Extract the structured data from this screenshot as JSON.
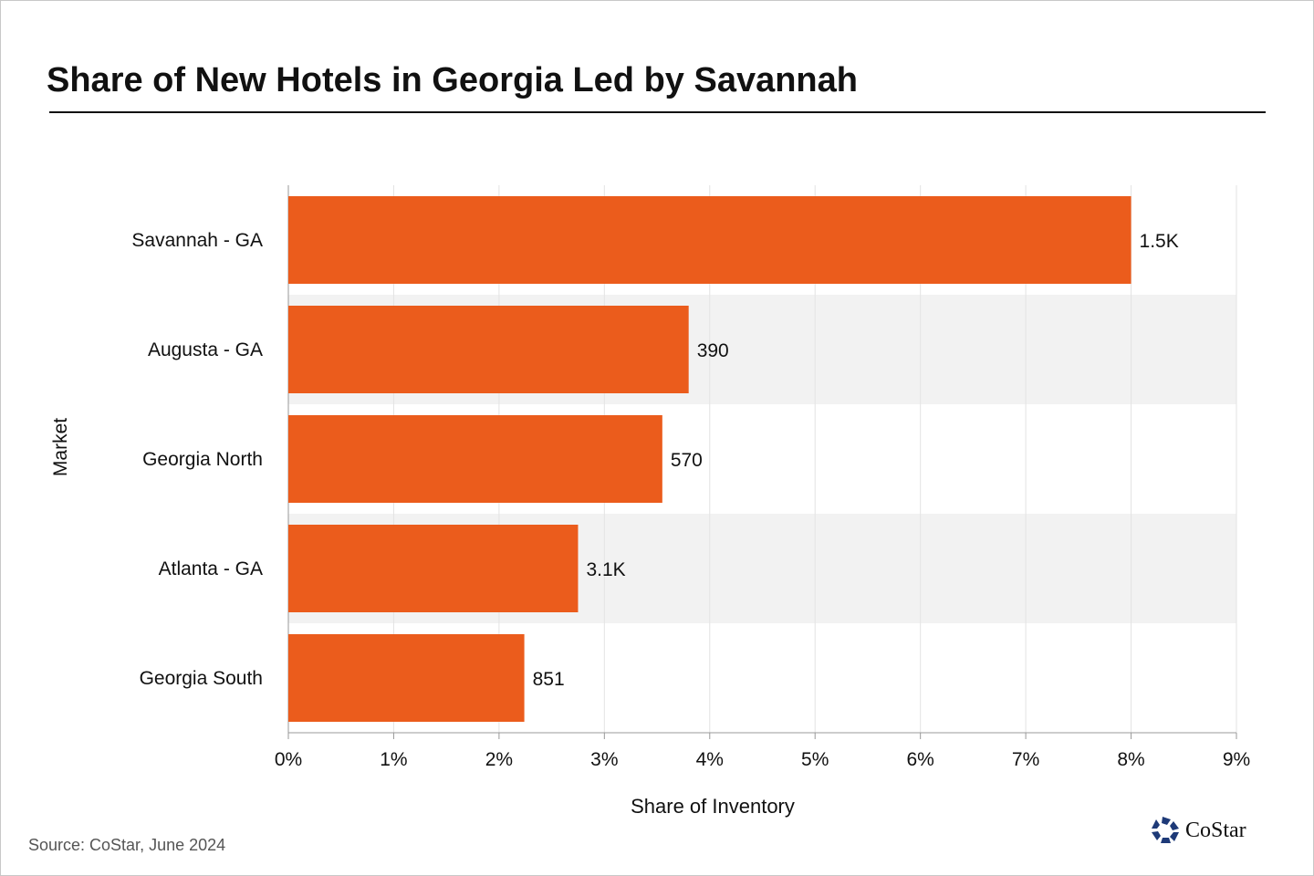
{
  "title": "Share of New Hotels in Georgia Led by Savannah",
  "source": "Source: CoStar, June 2024",
  "logo_text": "CoStar",
  "colors": {
    "bar": "#eb5c1c",
    "band": "#f2f2f2",
    "logo": "#1e3a78"
  },
  "chart_data": {
    "type": "bar",
    "orientation": "horizontal",
    "title": "Share of New Hotels in Georgia Led by Savannah",
    "xlabel": "Share of Inventory",
    "ylabel": "Market",
    "categories": [
      "Savannah - GA",
      "Augusta - GA",
      "Georgia North",
      "Atlanta - GA",
      "Georgia South"
    ],
    "values": [
      8.0,
      3.8,
      3.55,
      2.75,
      2.24
    ],
    "data_labels": [
      "1.5K",
      "390",
      "570",
      "3.1K",
      "851"
    ],
    "xlim": [
      0,
      9
    ],
    "xticks": [
      "0%",
      "1%",
      "2%",
      "3%",
      "4%",
      "5%",
      "6%",
      "7%",
      "8%",
      "9%"
    ],
    "grid": true
  }
}
